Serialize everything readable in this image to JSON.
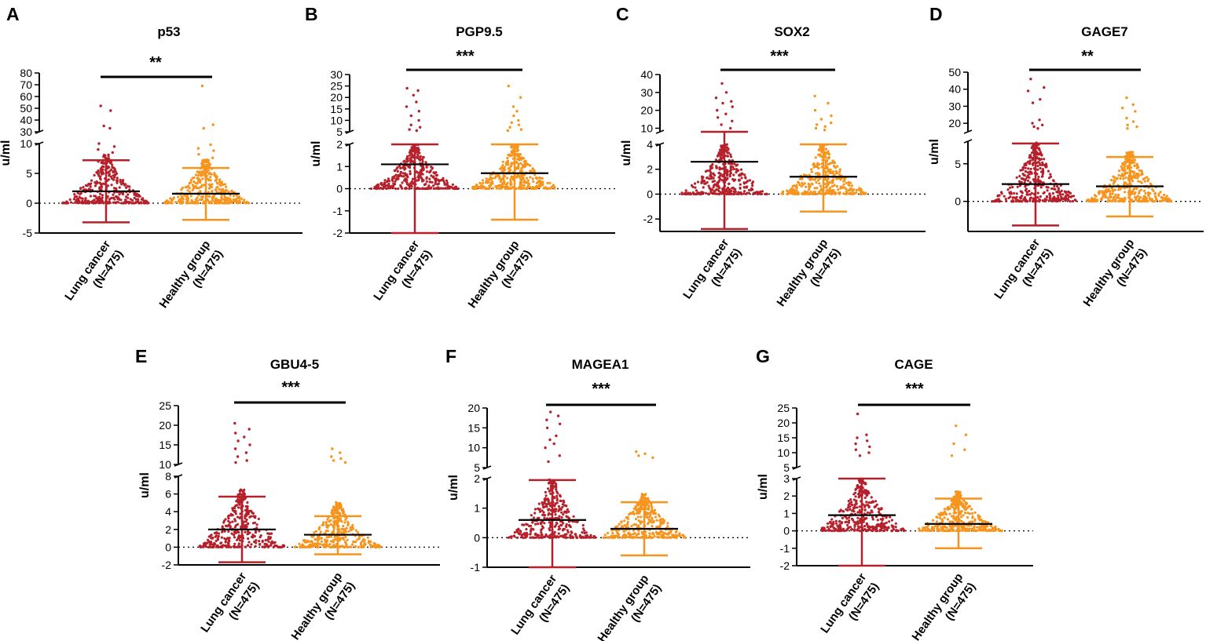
{
  "figure": {
    "ylabel": "u/ml",
    "group_labels": [
      [
        "Lung cancer",
        "(N=475)"
      ],
      [
        "Healthy group",
        "(N=475)"
      ]
    ],
    "colors": {
      "lung": "#b5202a",
      "healthy": "#f7941d",
      "mean_line": "#000000",
      "axis": "#000000"
    }
  },
  "chart_data": [
    {
      "type": "scatter",
      "panel": "A",
      "title": "p53",
      "significance": "**",
      "ylabel": "u/ml",
      "xlabel": "",
      "categories": [
        "Lung cancer (N=475)",
        "Healthy group (N=475)"
      ],
      "y_axis_break": {
        "lower_ylim": [
          -5,
          10
        ],
        "lower_ticks": [
          -5,
          0,
          5,
          10
        ],
        "upper_ylim": [
          30,
          80
        ],
        "upper_ticks": [
          30,
          40,
          50,
          60,
          70,
          80
        ]
      },
      "series": [
        {
          "name": "Lung cancer",
          "n": 475,
          "mean": 2.0,
          "sd_low": -3.2,
          "sd_high": 7.2,
          "y_max_point": 52,
          "highs": [
            52,
            48,
            35,
            33,
            10,
            9.5,
            9,
            8.5,
            8,
            7.5,
            7
          ]
        },
        {
          "name": "Healthy group",
          "n": 475,
          "mean": 1.6,
          "sd_low": -2.8,
          "sd_high": 5.9,
          "y_max_point": 69,
          "highs": [
            69,
            36,
            33,
            9.8,
            9.2,
            8.8,
            8.2,
            7.6,
            7,
            6.5
          ]
        }
      ]
    },
    {
      "type": "scatter",
      "panel": "B",
      "title": "PGP9.5",
      "significance": "***",
      "ylabel": "u/ml",
      "xlabel": "",
      "categories": [
        "Lung cancer (N=475)",
        "Healthy group (N=475)"
      ],
      "y_axis_break": {
        "lower_ylim": [
          -2,
          2
        ],
        "lower_ticks": [
          -2,
          -1,
          0,
          1,
          2
        ],
        "upper_ylim": [
          5,
          30
        ],
        "upper_ticks": [
          5,
          10,
          15,
          20,
          25,
          30
        ]
      },
      "series": [
        {
          "name": "Lung cancer",
          "n": 475,
          "mean": 1.1,
          "sd_low": -2.0,
          "sd_high": 2.0,
          "y_max_point": 24,
          "highs": [
            24,
            23,
            21,
            18,
            16,
            14,
            12,
            10,
            8,
            7,
            6,
            5.5
          ]
        },
        {
          "name": "Healthy group",
          "n": 475,
          "mean": 0.7,
          "sd_low": -1.4,
          "sd_high": 2.0,
          "y_max_point": 25,
          "highs": [
            25,
            20,
            16,
            14,
            12,
            10,
            9,
            8,
            7,
            6,
            5.5
          ]
        }
      ]
    },
    {
      "type": "scatter",
      "panel": "C",
      "title": "SOX2",
      "significance": "***",
      "ylabel": "u/ml",
      "xlabel": "",
      "categories": [
        "Lung cancer (N=475)",
        "Healthy group (N=475)"
      ],
      "y_axis_break": {
        "lower_ylim": [
          -3,
          4
        ],
        "lower_ticks": [
          -2,
          0,
          2,
          4
        ],
        "upper_ylim": [
          8,
          40
        ],
        "upper_ticks": [
          10,
          20,
          30,
          40
        ]
      },
      "series": [
        {
          "name": "Lung cancer",
          "n": 475,
          "mean": 2.6,
          "sd_low": -2.8,
          "sd_high": 8.0,
          "y_max_point": 35,
          "highs": [
            35,
            30,
            27,
            25,
            24,
            22,
            20,
            18,
            16,
            14,
            12,
            10
          ]
        },
        {
          "name": "Healthy group",
          "n": 475,
          "mean": 1.4,
          "sd_low": -1.4,
          "sd_high": 4.0,
          "y_max_point": 28,
          "highs": [
            28,
            24,
            20,
            17,
            15,
            13,
            12,
            11,
            10,
            9
          ]
        }
      ]
    },
    {
      "type": "scatter",
      "panel": "D",
      "title": "GAGE7",
      "significance": "**",
      "ylabel": "u/ml",
      "xlabel": "",
      "categories": [
        "Lung cancer (N=475)",
        "Healthy group (N=475)"
      ],
      "y_axis_break": {
        "lower_ylim": [
          -4,
          8
        ],
        "lower_ticks": [
          0,
          5
        ],
        "upper_ylim": [
          15,
          50
        ],
        "upper_ticks": [
          20,
          30,
          40,
          50
        ]
      },
      "series": [
        {
          "name": "Lung cancer",
          "n": 475,
          "mean": 2.3,
          "sd_low": -3.2,
          "sd_high": 7.7,
          "y_max_point": 46,
          "highs": [
            46,
            41,
            39,
            34,
            32,
            22,
            20,
            19,
            18,
            17
          ]
        },
        {
          "name": "Healthy group",
          "n": 475,
          "mean": 2.0,
          "sd_low": -2.0,
          "sd_high": 5.9,
          "y_max_point": 35,
          "highs": [
            35,
            31,
            29,
            27,
            23,
            21,
            19,
            18,
            17
          ]
        }
      ]
    },
    {
      "type": "scatter",
      "panel": "E",
      "title": "GBU4-5",
      "significance": "***",
      "ylabel": "u/ml",
      "xlabel": "",
      "categories": [
        "Lung cancer (N=475)",
        "Healthy group (N=475)"
      ],
      "y_axis_break": {
        "lower_ylim": [
          -2,
          8
        ],
        "lower_ticks": [
          -2,
          0,
          2,
          4,
          6,
          8
        ],
        "upper_ylim": [
          10,
          25
        ],
        "upper_ticks": [
          10,
          15,
          20,
          25
        ]
      },
      "series": [
        {
          "name": "Lung cancer",
          "n": 475,
          "mean": 2.0,
          "sd_low": -1.7,
          "sd_high": 5.7,
          "y_max_point": 20.5,
          "highs": [
            20.5,
            19,
            18,
            17,
            16,
            15,
            14,
            13,
            12,
            11,
            10.5
          ]
        },
        {
          "name": "Healthy group",
          "n": 475,
          "mean": 1.4,
          "sd_low": -0.8,
          "sd_high": 3.5,
          "y_max_point": 14,
          "highs": [
            14,
            13,
            12,
            11.5,
            11,
            10.5
          ]
        }
      ]
    },
    {
      "type": "scatter",
      "panel": "F",
      "title": "MAGEA1",
      "significance": "***",
      "ylabel": "u/ml",
      "xlabel": "",
      "categories": [
        "Lung cancer (N=475)",
        "Healthy group (N=475)"
      ],
      "y_axis_break": {
        "lower_ylim": [
          -1,
          2
        ],
        "lower_ticks": [
          -1,
          0,
          1,
          2
        ],
        "upper_ylim": [
          5,
          20
        ],
        "upper_ticks": [
          5,
          10,
          15,
          20
        ]
      },
      "series": [
        {
          "name": "Lung cancer",
          "n": 475,
          "mean": 0.6,
          "sd_low": -1.0,
          "sd_high": 1.95,
          "y_max_point": 19,
          "highs": [
            19,
            18,
            17,
            16,
            15,
            13,
            12,
            11,
            10,
            8,
            6.5
          ]
        },
        {
          "name": "Healthy group",
          "n": 475,
          "mean": 0.3,
          "sd_low": -0.6,
          "sd_high": 1.2,
          "y_max_point": 9,
          "highs": [
            9,
            8.5,
            8,
            7.5
          ]
        }
      ]
    },
    {
      "type": "scatter",
      "panel": "G",
      "title": "CAGE",
      "significance": "***",
      "ylabel": "u/ml",
      "xlabel": "",
      "categories": [
        "Lung cancer (N=475)",
        "Healthy group (N=475)"
      ],
      "y_axis_break": {
        "lower_ylim": [
          -2,
          3
        ],
        "lower_ticks": [
          -2,
          -1,
          0,
          1,
          2,
          3
        ],
        "upper_ylim": [
          5,
          25
        ],
        "upper_ticks": [
          5,
          10,
          15,
          20,
          25
        ]
      },
      "series": [
        {
          "name": "Lung cancer",
          "n": 475,
          "mean": 0.9,
          "sd_low": -2.0,
          "sd_high": 3.0,
          "y_max_point": 23,
          "highs": [
            23,
            16,
            15,
            14,
            13,
            12,
            11,
            10,
            9
          ]
        },
        {
          "name": "Healthy group",
          "n": 475,
          "mean": 0.4,
          "sd_low": -1.0,
          "sd_high": 1.85,
          "y_max_point": 19,
          "highs": [
            19,
            16,
            13,
            11,
            9
          ]
        }
      ]
    }
  ]
}
